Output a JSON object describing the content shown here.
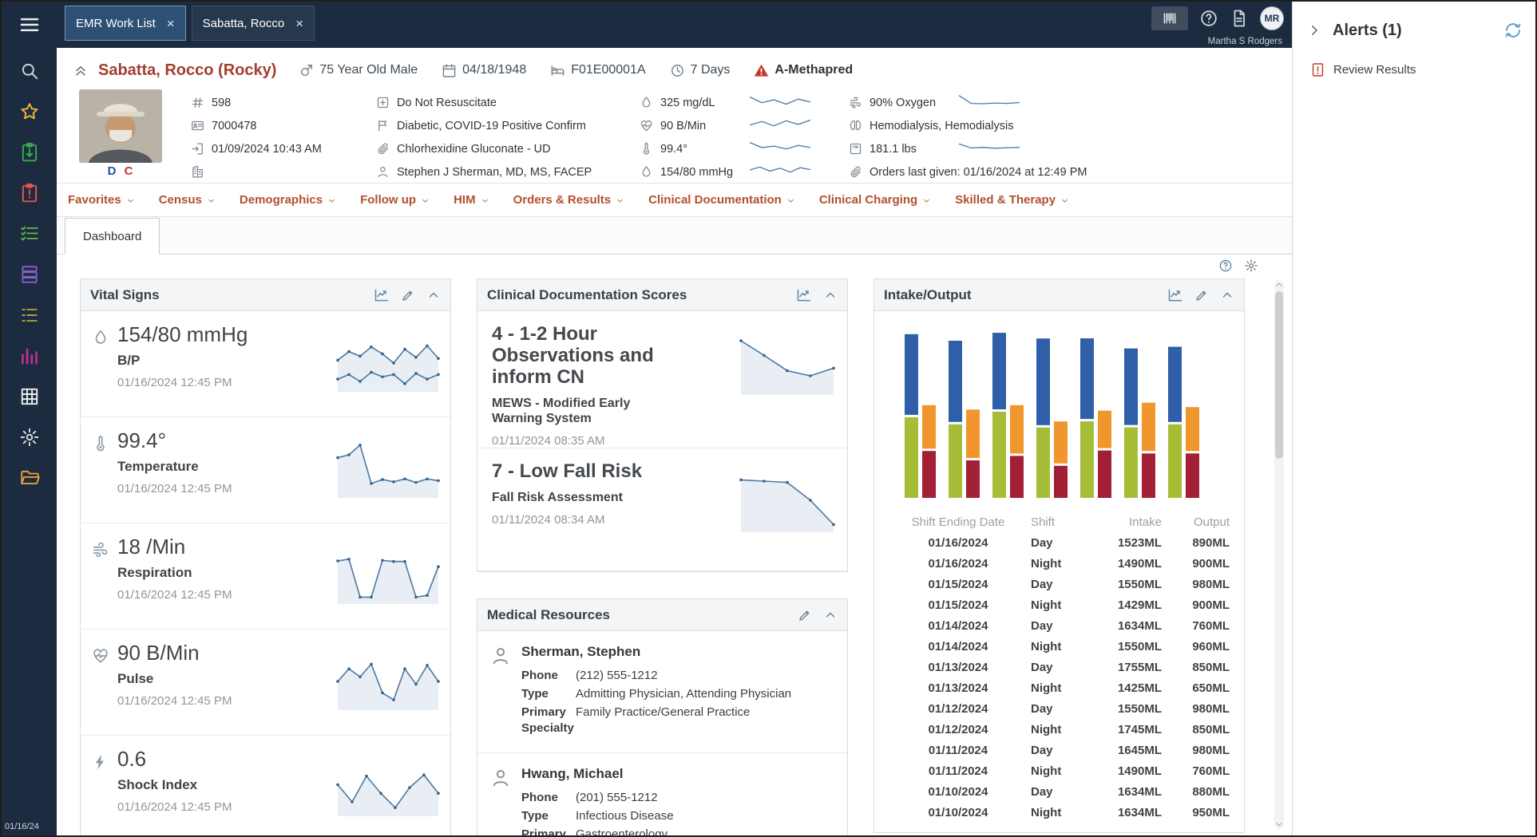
{
  "topbar": {
    "tabs": [
      {
        "label": "EMR Work List",
        "active": true
      },
      {
        "label": "Sabatta, Rocco",
        "active": false
      }
    ],
    "user_initials": "MR",
    "user_name": "Martha S Rodgers"
  },
  "sidebar": {
    "date": "01/16/24",
    "items": [
      {
        "icon": "search",
        "color": "#cdd5dc"
      },
      {
        "icon": "star",
        "color": "#efb63e"
      },
      {
        "icon": "clipboard-arrow",
        "color": "#3aa94b"
      },
      {
        "icon": "clipboard-alert",
        "color": "#e0584b"
      },
      {
        "icon": "checklist",
        "color": "#59b44a"
      },
      {
        "icon": "layers",
        "color": "#8060c0"
      },
      {
        "icon": "list",
        "color": "#a8a234"
      },
      {
        "icon": "chart-bars",
        "color": "#c42f92"
      },
      {
        "icon": "grid",
        "color": "#e8ecef"
      },
      {
        "icon": "gear",
        "color": "#d6dbdf"
      },
      {
        "icon": "folder",
        "color": "#e79b3e"
      }
    ]
  },
  "patient": {
    "name": "Sabatta, Rocco (Rocky)",
    "summary": [
      {
        "icon": "male",
        "label": "75 Year Old Male"
      },
      {
        "icon": "calendar",
        "label": "04/18/1948"
      },
      {
        "icon": "bed",
        "label": "F01E00001A"
      },
      {
        "icon": "clock",
        "label": "7 Days"
      },
      {
        "icon": "warning",
        "label": "A-Methapred",
        "alert": true
      }
    ],
    "photo_flags": [
      {
        "text": "D",
        "color": "#1f4fa0"
      },
      {
        "text": "C",
        "color": "#c1392b"
      }
    ],
    "info_columns": [
      [
        {
          "icon": "hash",
          "text": "598"
        },
        {
          "icon": "id-card",
          "text": "7000478"
        },
        {
          "icon": "door-in",
          "text": "01/09/2024 10:43 AM"
        },
        {
          "icon": "building",
          "text": ""
        }
      ],
      [
        {
          "icon": "square-plus",
          "text": "Do Not Resuscitate"
        },
        {
          "icon": "flag",
          "text": "Diabetic, COVID-19 Positive Confirm"
        },
        {
          "icon": "paperclip",
          "text": "Chlorhexidine Gluconate - UD"
        },
        {
          "icon": "person",
          "text": "Stephen J Sherman, MD, MS, FACEP"
        }
      ],
      [
        {
          "icon": "droplet",
          "text": "325 mg/dL",
          "spark": [
            0.75,
            0.35,
            0.55,
            0.25,
            0.6,
            0.4
          ]
        },
        {
          "icon": "heart",
          "text": "90 B/Min",
          "spark": [
            0.4,
            0.65,
            0.35,
            0.7,
            0.45,
            0.75
          ]
        },
        {
          "icon": "thermometer",
          "text": "99.4°",
          "spark": [
            0.8,
            0.45,
            0.55,
            0.35,
            0.6,
            0.45
          ]
        },
        {
          "icon": "droplet",
          "text": "154/80 mmHg",
          "spark": [
            0.5,
            0.7,
            0.42,
            0.62,
            0.35,
            0.66,
            0.52
          ]
        }
      ],
      [
        {
          "icon": "wind",
          "text": "90% Oxygen",
          "spark": [
            0.85,
            0.3,
            0.28,
            0.33,
            0.3,
            0.36
          ]
        },
        {
          "icon": "kidneys",
          "text": "Hemodialysis, Hemodialysis"
        },
        {
          "icon": "scale",
          "text": "181.1 lbs",
          "spark": [
            0.7,
            0.42,
            0.46,
            0.4,
            0.44,
            0.46
          ]
        },
        {
          "icon": "paperclip",
          "text": "Orders last given: 01/16/2024 at 12:49 PM"
        }
      ]
    ]
  },
  "menu": {
    "items": [
      "Favorites",
      "Census",
      "Demographics",
      "Follow up",
      "HIM",
      "Orders & Results",
      "Clinical Documentation",
      "Clinical Charging",
      "Skilled & Therapy"
    ]
  },
  "tabs": {
    "dashboard": "Dashboard"
  },
  "cards": {
    "vital_signs": {
      "title": "Vital Signs",
      "header_icons": [
        "chart-line",
        "pencil",
        "chevron-up"
      ],
      "items": [
        {
          "icon": "droplet",
          "value": "154/80 mmHg",
          "label": "B/P",
          "time": "01/16/2024 12:45 PM",
          "spark": [
            [
              0.55,
              0.7,
              0.62,
              0.78,
              0.66,
              0.5,
              0.74,
              0.6,
              0.8,
              0.58
            ],
            [
              0.22,
              0.3,
              0.18,
              0.34,
              0.26,
              0.3,
              0.14,
              0.32,
              0.22,
              0.3
            ]
          ]
        },
        {
          "icon": "thermometer",
          "value": "99.4°",
          "label": "Temperature",
          "time": "01/16/2024 12:45 PM",
          "spark": [
            0.7,
            0.75,
            0.92,
            0.25,
            0.32,
            0.28,
            0.33,
            0.27,
            0.33,
            0.3
          ]
        },
        {
          "icon": "wind",
          "value": "18 /Min",
          "label": "Respiration",
          "time": "01/16/2024 12:45 PM",
          "spark": [
            0.75,
            0.78,
            0.12,
            0.12,
            0.76,
            0.74,
            0.74,
            0.12,
            0.15,
            0.65
          ]
        },
        {
          "icon": "heart",
          "value": "90 B/Min",
          "label": "Pulse",
          "time": "01/16/2024 12:45 PM",
          "spark": [
            0.5,
            0.72,
            0.58,
            0.8,
            0.3,
            0.18,
            0.72,
            0.45,
            0.78,
            0.5
          ]
        },
        {
          "icon": "bolt",
          "value": "0.6",
          "label": "Shock Index",
          "time": "01/16/2024 12:45 PM",
          "spark": [
            0.55,
            0.25,
            0.7,
            0.4,
            0.15,
            0.5,
            0.72,
            0.4
          ]
        }
      ]
    },
    "clinical_scores": {
      "title": "Clinical Documentation Scores",
      "header_icons": [
        "chart-line",
        "chevron-up"
      ],
      "items": [
        {
          "value": "4 - 1-2 Hour Observations and inform CN",
          "label": "MEWS - Modified Early Warning System",
          "time": "01/11/2024 08:35 AM",
          "spark": [
            0.85,
            0.62,
            0.38,
            0.3,
            0.42
          ]
        },
        {
          "value": "7 - Low Fall Risk",
          "label": "Fall Risk Assessment",
          "time": "01/11/2024 08:34 AM",
          "spark": [
            0.82,
            0.8,
            0.78,
            0.5,
            0.12
          ]
        }
      ]
    },
    "medical_resources": {
      "title": "Medical Resources",
      "header_icons": [
        "pencil",
        "chevron-up"
      ],
      "people": [
        {
          "name": "Sherman, Stephen",
          "rows": [
            [
              "Phone",
              "(212) 555-1212"
            ],
            [
              "Type",
              "Admitting Physician, Attending Physician"
            ],
            [
              "Primary Specialty",
              "Family Practice/General Practice"
            ]
          ]
        },
        {
          "name": "Hwang, Michael",
          "rows": [
            [
              "Phone",
              "(201) 555-1212"
            ],
            [
              "Type",
              "Infectious Disease"
            ],
            [
              "Primary Specialty",
              "Gastroenterology"
            ]
          ]
        }
      ]
    },
    "intake_output": {
      "title": "Intake/Output",
      "header_icons": [
        "chart-line",
        "pencil",
        "chevron-up"
      ],
      "table": {
        "headers": [
          "Shift Ending Date",
          "Shift",
          "Intake",
          "Output"
        ],
        "rows": [
          [
            "01/16/2024",
            "Day",
            "1523ML",
            "890ML"
          ],
          [
            "01/16/2024",
            "Night",
            "1490ML",
            "900ML"
          ],
          [
            "01/15/2024",
            "Day",
            "1550ML",
            "980ML"
          ],
          [
            "01/15/2024",
            "Night",
            "1429ML",
            "900ML"
          ],
          [
            "01/14/2024",
            "Day",
            "1634ML",
            "760ML"
          ],
          [
            "01/14/2024",
            "Night",
            "1550ML",
            "960ML"
          ],
          [
            "01/13/2024",
            "Day",
            "1755ML",
            "850ML"
          ],
          [
            "01/13/2024",
            "Night",
            "1425ML",
            "650ML"
          ],
          [
            "01/12/2024",
            "Day",
            "1550ML",
            "980ML"
          ],
          [
            "01/12/2024",
            "Night",
            "1745ML",
            "850ML"
          ],
          [
            "01/11/2024",
            "Day",
            "1645ML",
            "980ML"
          ],
          [
            "01/11/2024",
            "Night",
            "1490ML",
            "760ML"
          ],
          [
            "01/10/2024",
            "Day",
            "1634ML",
            "880ML"
          ],
          [
            "01/10/2024",
            "Night",
            "1634ML",
            "950ML"
          ]
        ]
      }
    }
  },
  "alerts": {
    "title": "Alerts (1)",
    "items": [
      {
        "icon": "alert-doc",
        "label": "Review Results"
      }
    ]
  },
  "chart_data": [
    {
      "type": "bar",
      "title": "Intake/Output",
      "stacked": true,
      "categories": [
        "01/10/2024",
        "01/11/2024",
        "01/12/2024",
        "01/13/2024",
        "01/14/2024",
        "01/15/2024",
        "01/16/2024"
      ],
      "series": [
        {
          "name": "Intake Day",
          "color": "#2e5fa8",
          "values": [
            1634,
            1645,
            1550,
            1755,
            1634,
            1550,
            1523
          ]
        },
        {
          "name": "Intake Night",
          "color": "#a6bd38",
          "values": [
            1634,
            1490,
            1745,
            1425,
            1550,
            1429,
            1490
          ]
        },
        {
          "name": "Output Day",
          "color": "#f0962c",
          "values": [
            880,
            980,
            980,
            850,
            760,
            980,
            890
          ]
        },
        {
          "name": "Output Night",
          "color": "#a21f35",
          "values": [
            950,
            760,
            850,
            650,
            960,
            900,
            900
          ]
        }
      ],
      "ylabel": "ML",
      "ylim": [
        0,
        3200
      ],
      "legend": false,
      "note": "Paired stacked bars per date: Intake bar (Day blue + Night green) next to Output bar (Day orange + Night dark red); axes unlabeled in UI"
    },
    {
      "type": "line",
      "title": "MEWS - Modified Early Warning System trend",
      "normalized_points": [
        0.85,
        0.62,
        0.38,
        0.3,
        0.42
      ]
    },
    {
      "type": "line",
      "title": "Fall Risk Assessment trend",
      "normalized_points": [
        0.82,
        0.8,
        0.78,
        0.5,
        0.12
      ]
    }
  ]
}
